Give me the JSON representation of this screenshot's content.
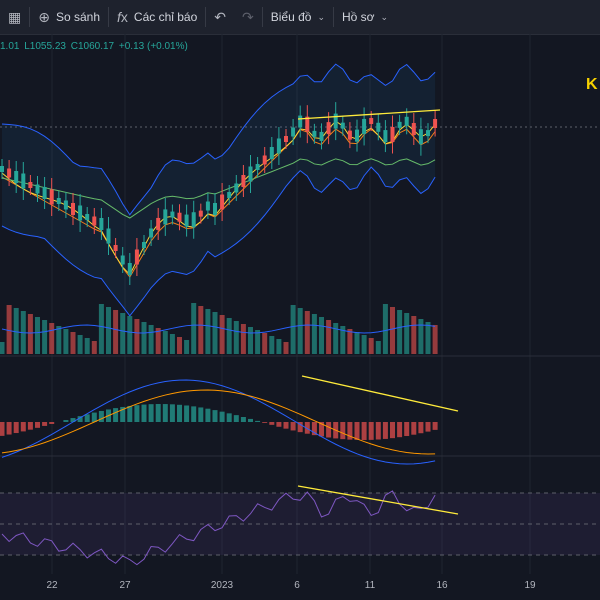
{
  "toolbar": {
    "compare_label": "So sánh",
    "indicators_label": "Các chỉ báo",
    "chart_label": "Biểu đồ",
    "profile_label": "Hồ sơ"
  },
  "ohlc": {
    "open_partial": "1.01",
    "low": "L1055.23",
    "close": "C1060.17",
    "change": "+0.13 (+0.01%)"
  },
  "side_letter": "K",
  "colors": {
    "background": "#131722",
    "up": "#26a69a",
    "down": "#ef5350",
    "bollinger": "#2962ff",
    "trendline": "#ffeb3b",
    "rsi": "#7e57c2"
  },
  "chart_data": {
    "type": "candlestick",
    "x_ticks": [
      "22",
      "27",
      "2023",
      "6",
      "11",
      "16",
      "19"
    ],
    "indicators": [
      "Bollinger Bands",
      "Moving Averages",
      "Volume",
      "MACD",
      "RSI"
    ]
  }
}
